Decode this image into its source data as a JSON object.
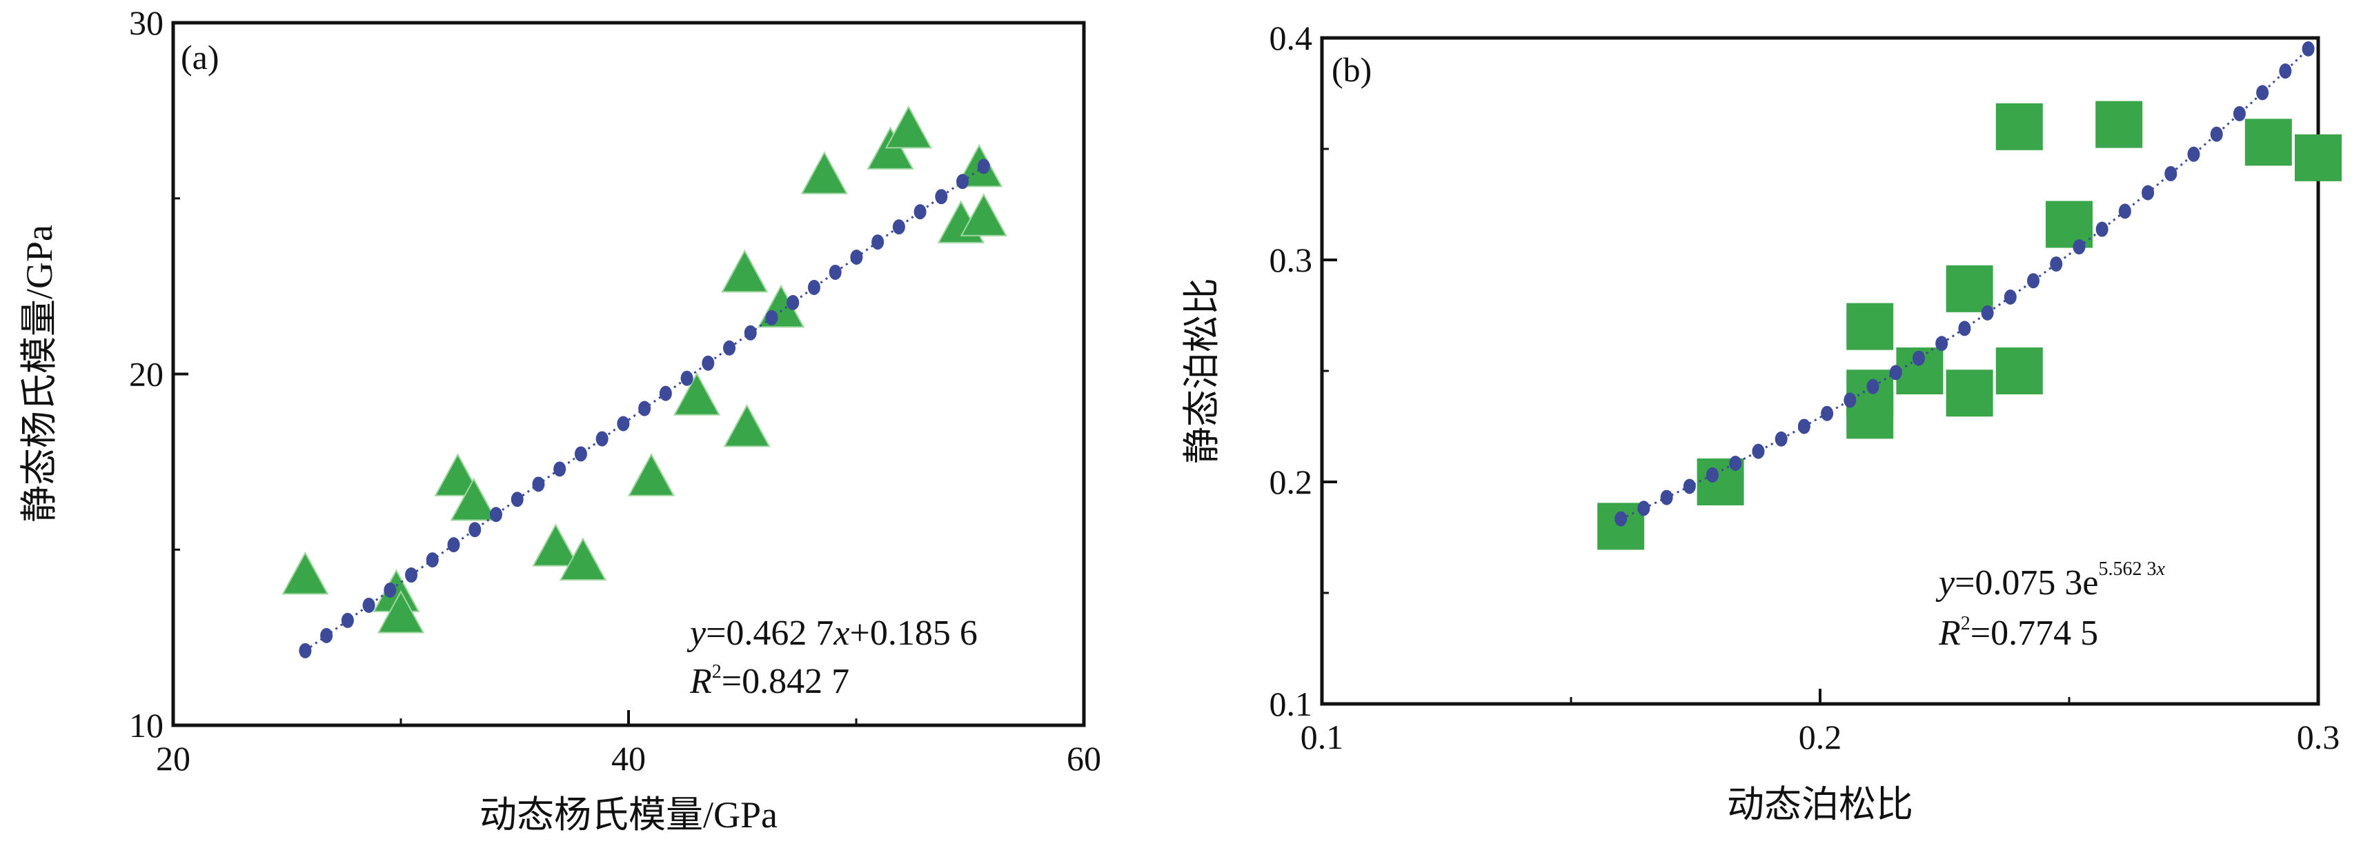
{
  "chart_data": [
    {
      "type": "scatter",
      "panel_label": "(a)",
      "xlabel": "动态杨氏模量/GPa",
      "ylabel": "静态杨氏模量/GPa",
      "xlim": [
        20,
        60
      ],
      "ylim": [
        10,
        30
      ],
      "xticks": [
        "20",
        "40",
        "60"
      ],
      "yticks": [
        "10",
        "20",
        "30"
      ],
      "marker": "triangle",
      "marker_color": "#3aa64a",
      "fit_color": "#3d4a9a",
      "points": [
        [
          25.8,
          14.2
        ],
        [
          29.8,
          13.7
        ],
        [
          30.0,
          13.1
        ],
        [
          32.5,
          17.0
        ],
        [
          33.2,
          16.3
        ],
        [
          36.8,
          15.0
        ],
        [
          38.0,
          14.6
        ],
        [
          41.0,
          17.0
        ],
        [
          43.0,
          19.3
        ],
        [
          45.2,
          18.4
        ],
        [
          45.1,
          22.8
        ],
        [
          46.7,
          21.8
        ],
        [
          48.6,
          25.6
        ],
        [
          51.5,
          26.3
        ],
        [
          52.3,
          26.9
        ],
        [
          55.4,
          25.8
        ],
        [
          54.6,
          24.2
        ],
        [
          55.6,
          24.4
        ]
      ],
      "fit": {
        "type": "linear",
        "slope": 0.4627,
        "intercept": 0.1856,
        "x_range": [
          25.8,
          55.6
        ]
      },
      "equation": {
        "y_var": "y",
        "eq_part1": "=0.462 7",
        "x_var": "x",
        "eq_part2": "+0.185 6",
        "r_var": "R",
        "r_sup": "2",
        "r_value": "=0.842 7"
      }
    },
    {
      "type": "scatter",
      "panel_label": "(b)",
      "xlabel": "动态泊松比",
      "ylabel": "静态泊松比",
      "xlim": [
        0.1,
        0.3
      ],
      "ylim": [
        0.1,
        0.4
      ],
      "xticks": [
        "0.1",
        "0.2",
        "0.3"
      ],
      "yticks": [
        "0.1",
        "0.2",
        "0.3",
        "0.4"
      ],
      "marker": "square",
      "marker_color": "#3aa64a",
      "fit_color": "#3d4a9a",
      "points": [
        [
          0.16,
          0.18
        ],
        [
          0.18,
          0.2
        ],
        [
          0.21,
          0.27
        ],
        [
          0.21,
          0.24
        ],
        [
          0.21,
          0.23
        ],
        [
          0.22,
          0.25
        ],
        [
          0.23,
          0.287
        ],
        [
          0.23,
          0.24
        ],
        [
          0.24,
          0.36
        ],
        [
          0.24,
          0.25
        ],
        [
          0.25,
          0.316
        ],
        [
          0.26,
          0.361
        ],
        [
          0.29,
          0.353
        ],
        [
          0.3,
          0.346
        ]
      ],
      "fit": {
        "type": "exponential",
        "a": 0.0753,
        "b": 5.5623,
        "x_range": [
          0.16,
          0.298
        ]
      },
      "equation": {
        "y_var": "y",
        "eq_part1": "=0.075 3e",
        "exp": "5.562 3",
        "x_var": "x",
        "r_var": "R",
        "r_sup": "2",
        "r_value": "=0.774 5"
      }
    }
  ]
}
